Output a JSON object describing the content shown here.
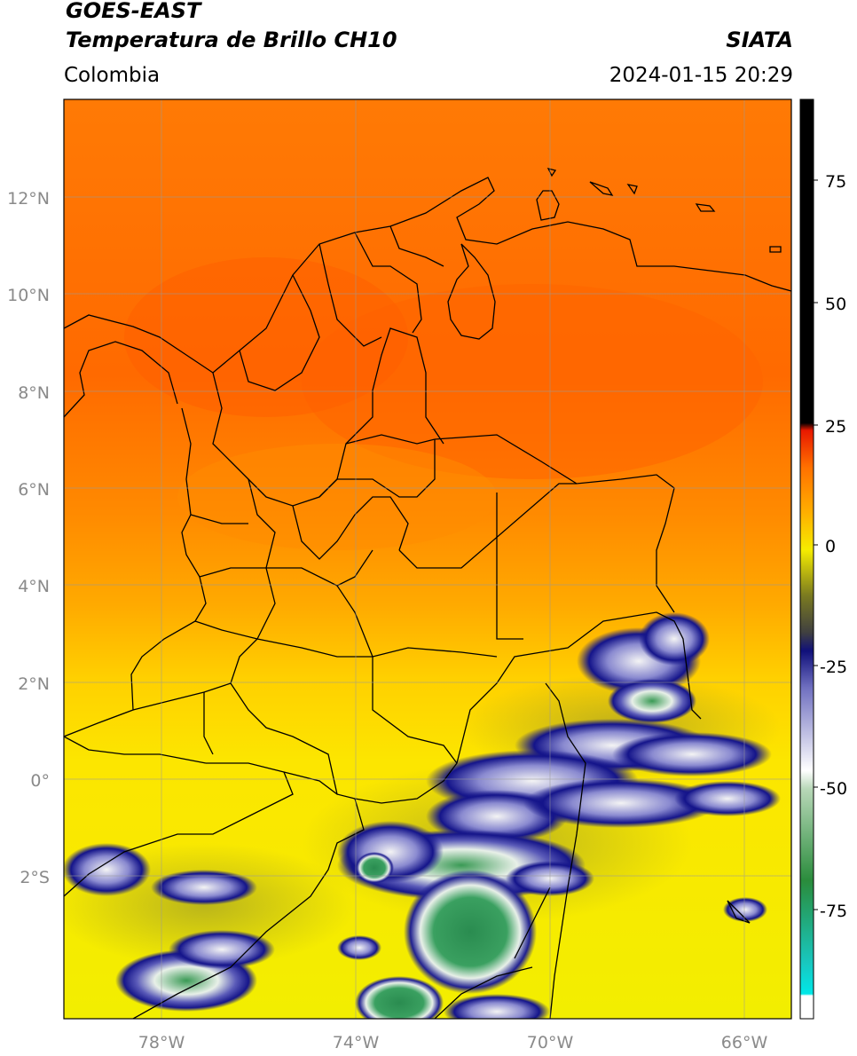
{
  "header": {
    "satellite": "GOES-EAST",
    "product": "Temperatura de Brillo CH10",
    "brand": "SIATA",
    "region": "Colombia",
    "timestamp": "2024-01-15 20:29"
  },
  "map": {
    "lon_range": [
      -80,
      -65
    ],
    "lat_range": [
      -5,
      14
    ],
    "lat_ticks": [
      "12°N",
      "10°N",
      "8°N",
      "6°N",
      "4°N",
      "2°N",
      "0°",
      "2°S"
    ],
    "lon_ticks": [
      "78°W",
      "74°W",
      "70°W",
      "66°W"
    ],
    "gridlines": true
  },
  "colorbar": {
    "ticks": [
      "75",
      "50",
      "25",
      "0",
      "-25",
      "-50",
      "-75"
    ],
    "range": [
      -97,
      90
    ],
    "colors": {
      "hot": "#000000",
      "red": "#e81800",
      "orange": "#ff7a00",
      "yellow": "#f5ec00",
      "olive": "#5a5a00",
      "navy": "#10107a",
      "white": "#f4f4f4",
      "green": "#2a8c3c",
      "teal": "#1ec8b4",
      "cyan": "#00e8e8"
    }
  }
}
